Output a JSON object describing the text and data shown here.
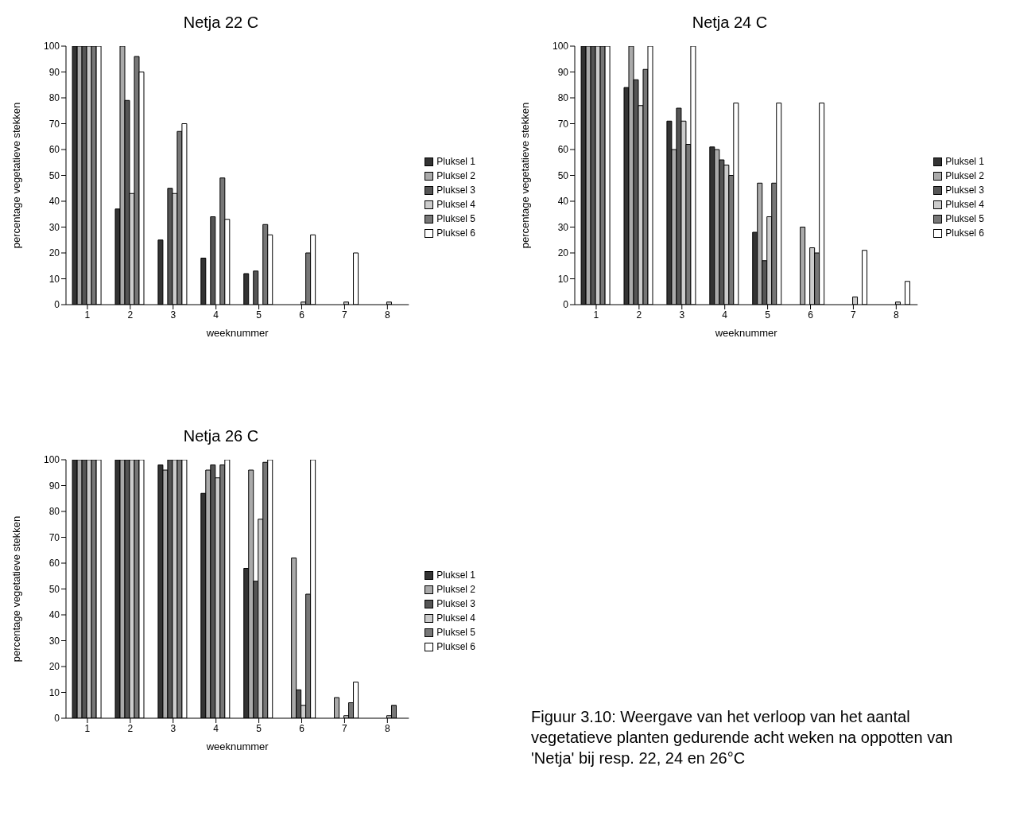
{
  "chart_data": [
    {
      "type": "bar",
      "title": "Netja 22 C",
      "xlabel": "weeknummer",
      "ylabel": "percentage vegetatieve stekken",
      "categories": [
        "1",
        "2",
        "3",
        "4",
        "5",
        "6",
        "7",
        "8"
      ],
      "ylim": [
        0,
        100
      ],
      "yticks": [
        0,
        10,
        20,
        30,
        40,
        50,
        60,
        70,
        80,
        90,
        100
      ],
      "grid": false,
      "legend": "right",
      "series": [
        {
          "name": "Pluksel 1",
          "color": "#333333",
          "values": [
            100,
            37,
            25,
            18,
            12,
            0,
            0,
            0
          ]
        },
        {
          "name": "Pluksel 2",
          "color": "#aaaaaa",
          "values": [
            100,
            100,
            0,
            0,
            0,
            0,
            0,
            0
          ]
        },
        {
          "name": "Pluksel 3",
          "color": "#555555",
          "values": [
            100,
            79,
            45,
            34,
            13,
            0,
            0,
            0
          ]
        },
        {
          "name": "Pluksel 4",
          "color": "#cccccc",
          "values": [
            100,
            43,
            43,
            0,
            0,
            1,
            1,
            1
          ]
        },
        {
          "name": "Pluksel 5",
          "color": "#777777",
          "values": [
            100,
            96,
            67,
            49,
            31,
            20,
            0,
            0
          ]
        },
        {
          "name": "Pluksel 6",
          "color": "#ffffff",
          "values": [
            100,
            90,
            70,
            33,
            27,
            27,
            20,
            0
          ]
        }
      ]
    },
    {
      "type": "bar",
      "title": "Netja 24 C",
      "xlabel": "weeknummer",
      "ylabel": "percentage vegetatieve stekken",
      "categories": [
        "1",
        "2",
        "3",
        "4",
        "5",
        "6",
        "7",
        "8"
      ],
      "ylim": [
        0,
        100
      ],
      "yticks": [
        0,
        10,
        20,
        30,
        40,
        50,
        60,
        70,
        80,
        90,
        100
      ],
      "grid": false,
      "legend": "right",
      "series": [
        {
          "name": "Pluksel 1",
          "color": "#333333",
          "values": [
            100,
            84,
            71,
            61,
            28,
            0,
            0,
            0
          ]
        },
        {
          "name": "Pluksel 2",
          "color": "#aaaaaa",
          "values": [
            100,
            100,
            60,
            60,
            47,
            30,
            0,
            0
          ]
        },
        {
          "name": "Pluksel 3",
          "color": "#555555",
          "values": [
            100,
            87,
            76,
            56,
            17,
            0,
            0,
            0
          ]
        },
        {
          "name": "Pluksel 4",
          "color": "#cccccc",
          "values": [
            100,
            77,
            71,
            54,
            34,
            22,
            3,
            1
          ]
        },
        {
          "name": "Pluksel 5",
          "color": "#777777",
          "values": [
            100,
            91,
            62,
            50,
            47,
            20,
            0,
            0
          ]
        },
        {
          "name": "Pluksel 6",
          "color": "#ffffff",
          "values": [
            100,
            100,
            100,
            78,
            78,
            78,
            21,
            9
          ]
        }
      ]
    },
    {
      "type": "bar",
      "title": "Netja 26 C",
      "xlabel": "weeknummer",
      "ylabel": "percentage vegetatieve stekken",
      "categories": [
        "1",
        "2",
        "3",
        "4",
        "5",
        "6",
        "7",
        "8"
      ],
      "ylim": [
        0,
        100
      ],
      "yticks": [
        0,
        10,
        20,
        30,
        40,
        50,
        60,
        70,
        80,
        90,
        100
      ],
      "grid": false,
      "legend": "right",
      "annotations": [
        "Figuur 3.10: Weergave van het verloop van het aantal vegetatieve planten gedurende acht weken na oppotten van 'Netja' bij resp. 22, 24 en 26°C"
      ],
      "series": [
        {
          "name": "Pluksel 1",
          "color": "#333333",
          "values": [
            100,
            100,
            98,
            87,
            58,
            0,
            0,
            0
          ]
        },
        {
          "name": "Pluksel 2",
          "color": "#aaaaaa",
          "values": [
            100,
            100,
            96,
            96,
            96,
            62,
            8,
            0
          ]
        },
        {
          "name": "Pluksel 3",
          "color": "#555555",
          "values": [
            100,
            100,
            100,
            98,
            53,
            11,
            0,
            0
          ]
        },
        {
          "name": "Pluksel 4",
          "color": "#cccccc",
          "values": [
            100,
            100,
            100,
            93,
            77,
            5,
            1,
            1
          ]
        },
        {
          "name": "Pluksel 5",
          "color": "#777777",
          "values": [
            100,
            100,
            100,
            98,
            99,
            48,
            6,
            5
          ]
        },
        {
          "name": "Pluksel 6",
          "color": "#ffffff",
          "values": [
            100,
            100,
            100,
            100,
            100,
            100,
            14,
            0
          ]
        }
      ]
    }
  ]
}
